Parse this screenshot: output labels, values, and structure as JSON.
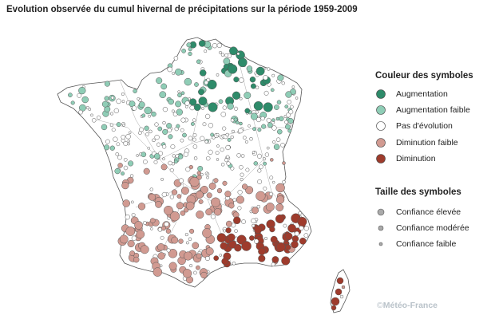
{
  "title": "Evolution observée du cumul hivernal de précipitations sur la période 1959-2009",
  "legend": {
    "color_heading": "Couleur des symboles",
    "color_items": [
      {
        "label": "Augmentation",
        "color": "#2e8b6a"
      },
      {
        "label": "Augmentation faible",
        "color": "#8fcdb6"
      },
      {
        "label": "Pas d'évolution",
        "color": "#ffffff"
      },
      {
        "label": "Diminution faible",
        "color": "#d19a91"
      },
      {
        "label": "Diminution",
        "color": "#9e3b2c"
      }
    ],
    "size_heading": "Taille des symboles",
    "size_items": [
      {
        "label": "Confiance élevée",
        "size": "large"
      },
      {
        "label": "Confiance modérée",
        "size": "medium"
      },
      {
        "label": "Confiance faible",
        "size": "small"
      }
    ]
  },
  "credit": {
    "symbol": "©",
    "text": "Météo-France"
  }
}
